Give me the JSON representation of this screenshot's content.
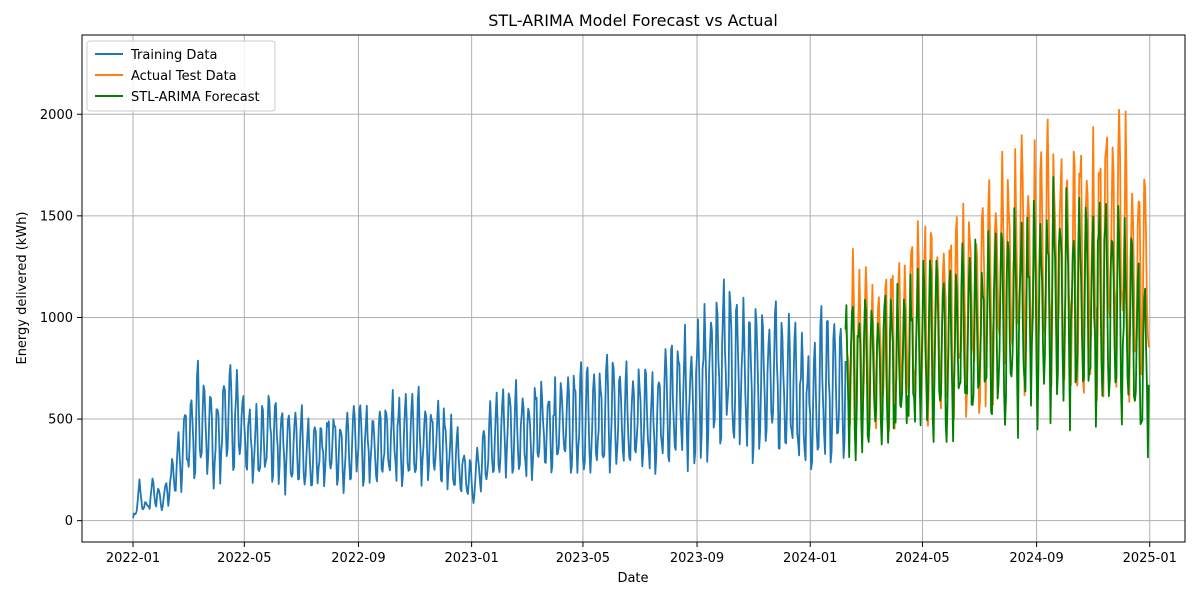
{
  "chart_data": {
    "type": "line",
    "title": "STL-ARIMA Model Forecast vs Actual",
    "xlabel": "Date",
    "ylabel": "Energy delivered (kWh)",
    "xlim": [
      "2021-11-07",
      "2025-02-08"
    ],
    "ylim": [
      -105,
      2390
    ],
    "x_ticks": [
      "2022-01-01",
      "2022-05-01",
      "2022-09-01",
      "2023-01-01",
      "2023-05-01",
      "2023-09-01",
      "2024-01-01",
      "2024-05-01",
      "2024-09-01",
      "2025-01-01"
    ],
    "x_tick_labels": [
      "2022-01",
      "2022-05",
      "2022-09",
      "2023-01",
      "2023-05",
      "2023-09",
      "2024-01",
      "2024-05",
      "2024-09",
      "2025-01"
    ],
    "y_ticks": [
      0,
      500,
      1000,
      1500,
      2000
    ],
    "y_tick_labels": [
      "0",
      "500",
      "1000",
      "1500",
      "2000"
    ],
    "grid": true,
    "legend_position": "upper-left",
    "series": [
      {
        "name": "Training Data",
        "color": "#1f77b4",
        "points": [
          [
            "2022-01-01",
            10
          ],
          [
            "2022-01-08",
            130
          ],
          [
            "2022-01-15",
            60
          ],
          [
            "2022-01-22",
            150
          ],
          [
            "2022-02-01",
            90
          ],
          [
            "2022-02-15",
            230
          ],
          [
            "2022-03-01",
            420
          ],
          [
            "2022-03-15",
            520
          ],
          [
            "2022-04-01",
            380
          ],
          [
            "2022-04-15",
            560
          ],
          [
            "2022-05-01",
            430
          ],
          [
            "2022-05-15",
            360
          ],
          [
            "2022-06-01",
            450
          ],
          [
            "2022-06-15",
            320
          ],
          [
            "2022-07-01",
            380
          ],
          [
            "2022-07-15",
            330
          ],
          [
            "2022-08-01",
            360
          ],
          [
            "2022-08-15",
            330
          ],
          [
            "2022-09-01",
            390
          ],
          [
            "2022-09-15",
            360
          ],
          [
            "2022-10-01",
            400
          ],
          [
            "2022-10-15",
            410
          ],
          [
            "2022-11-01",
            430
          ],
          [
            "2022-11-15",
            380
          ],
          [
            "2022-12-01",
            370
          ],
          [
            "2022-12-15",
            300
          ],
          [
            "2023-01-01",
            190
          ],
          [
            "2023-01-15",
            330
          ],
          [
            "2023-02-01",
            430
          ],
          [
            "2023-02-15",
            440
          ],
          [
            "2023-03-01",
            400
          ],
          [
            "2023-03-15",
            470
          ],
          [
            "2023-04-01",
            440
          ],
          [
            "2023-04-15",
            520
          ],
          [
            "2023-05-01",
            480
          ],
          [
            "2023-05-15",
            500
          ],
          [
            "2023-06-01",
            520
          ],
          [
            "2023-06-15",
            490
          ],
          [
            "2023-07-01",
            510
          ],
          [
            "2023-07-15",
            460
          ],
          [
            "2023-08-01",
            560
          ],
          [
            "2023-08-15",
            610
          ],
          [
            "2023-09-01",
            650
          ],
          [
            "2023-09-15",
            700
          ],
          [
            "2023-10-01",
            770
          ],
          [
            "2023-10-15",
            700
          ],
          [
            "2023-11-01",
            720
          ],
          [
            "2023-11-15",
            650
          ],
          [
            "2023-12-01",
            720
          ],
          [
            "2023-12-15",
            610
          ],
          [
            "2024-01-01",
            540
          ],
          [
            "2024-01-15",
            680
          ],
          [
            "2024-02-01",
            620
          ],
          [
            "2024-02-08",
            700
          ]
        ]
      },
      {
        "name": "Actual Test Data",
        "color": "#ff7f0e",
        "points": [
          [
            "2024-02-08",
            700
          ],
          [
            "2024-02-15",
            850
          ],
          [
            "2024-03-01",
            860
          ],
          [
            "2024-03-15",
            820
          ],
          [
            "2024-04-01",
            860
          ],
          [
            "2024-04-15",
            950
          ],
          [
            "2024-05-01",
            1000
          ],
          [
            "2024-05-15",
            1010
          ],
          [
            "2024-06-01",
            1020
          ],
          [
            "2024-06-15",
            1060
          ],
          [
            "2024-07-01",
            1100
          ],
          [
            "2024-07-15",
            1130
          ],
          [
            "2024-08-01",
            1200
          ],
          [
            "2024-08-15",
            1220
          ],
          [
            "2024-09-01",
            1230
          ],
          [
            "2024-09-15",
            1330
          ],
          [
            "2024-10-01",
            1250
          ],
          [
            "2024-10-15",
            1280
          ],
          [
            "2024-11-01",
            1270
          ],
          [
            "2024-11-15",
            1320
          ],
          [
            "2024-12-01",
            1350
          ],
          [
            "2024-12-15",
            1200
          ],
          [
            "2024-12-31",
            1200
          ]
        ]
      },
      {
        "name": "STL-ARIMA Forecast",
        "color": "#008000",
        "points": [
          [
            "2024-02-08",
            750
          ],
          [
            "2024-02-15",
            730
          ],
          [
            "2024-03-01",
            700
          ],
          [
            "2024-03-15",
            720
          ],
          [
            "2024-04-01",
            760
          ],
          [
            "2024-04-15",
            810
          ],
          [
            "2024-05-01",
            840
          ],
          [
            "2024-05-15",
            860
          ],
          [
            "2024-06-01",
            870
          ],
          [
            "2024-06-15",
            900
          ],
          [
            "2024-07-01",
            920
          ],
          [
            "2024-07-15",
            940
          ],
          [
            "2024-08-01",
            980
          ],
          [
            "2024-08-15",
            1000
          ],
          [
            "2024-09-01",
            1020
          ],
          [
            "2024-09-15",
            1090
          ],
          [
            "2024-10-01",
            1070
          ],
          [
            "2024-10-15",
            1080
          ],
          [
            "2024-11-01",
            1060
          ],
          [
            "2024-11-15",
            1070
          ],
          [
            "2024-12-01",
            1020
          ],
          [
            "2024-12-15",
            900
          ],
          [
            "2024-12-31",
            720
          ]
        ]
      }
    ]
  }
}
